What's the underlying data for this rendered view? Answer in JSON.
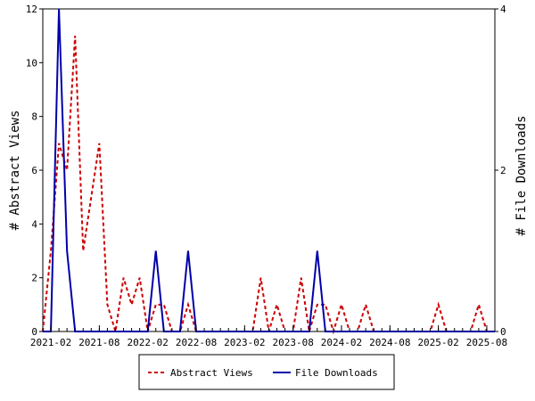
{
  "chart_data": {
    "type": "line",
    "ylabel_left": "# Abstract Views",
    "ylabel_right": "# File Downloads",
    "y_left_range": [
      0,
      12
    ],
    "y_left_ticks": [
      "0",
      "2",
      "4",
      "6",
      "8",
      "10",
      "12"
    ],
    "y_right_range": [
      0,
      4
    ],
    "y_right_ticks": [
      "0",
      "2",
      "4"
    ],
    "x_range": [
      "2021-01",
      "2025-09"
    ],
    "x_tick_labels": [
      {
        "month": "2021-02",
        "label": "2021-02"
      },
      {
        "month": "2021-08",
        "label": "2021-08"
      },
      {
        "month": "2022-02",
        "label": "2022-02"
      },
      {
        "month": "2022-08",
        "label": "2022-08"
      },
      {
        "month": "2023-02",
        "label": "2023-02"
      },
      {
        "month": "2023-08",
        "label": "2023-08"
      },
      {
        "month": "2024-02",
        "label": "2024-02"
      },
      {
        "month": "2024-08",
        "label": "2024-08"
      },
      {
        "month": "2025-02",
        "label": "2025-02"
      },
      {
        "month": "2025-08",
        "label": "2025-08"
      }
    ],
    "grid": false,
    "legend_position": "bottom-center",
    "series": [
      {
        "name": "Abstract Views",
        "axis": "left",
        "color": "#cc0000",
        "style": "dashed",
        "x": [
          "2021-01",
          "2021-02",
          "2021-03",
          "2021-04",
          "2021-05",
          "2021-06",
          "2021-07",
          "2021-08",
          "2021-09",
          "2021-10",
          "2021-11",
          "2021-12",
          "2022-01",
          "2022-02",
          "2022-03",
          "2022-04",
          "2022-05",
          "2022-06",
          "2022-07",
          "2022-08",
          "2022-09",
          "2022-10",
          "2022-11",
          "2022-12",
          "2023-01",
          "2023-02",
          "2023-03",
          "2023-04",
          "2023-05",
          "2023-06",
          "2023-07",
          "2023-08",
          "2023-09",
          "2023-10",
          "2023-11",
          "2023-12",
          "2024-01",
          "2024-02",
          "2024-03",
          "2024-04",
          "2024-05",
          "2024-06",
          "2024-07",
          "2024-08",
          "2024-09",
          "2024-10",
          "2024-11",
          "2024-12",
          "2025-01",
          "2025-02",
          "2025-03",
          "2025-04",
          "2025-05",
          "2025-06",
          "2025-07",
          "2025-08",
          "2025-09"
        ],
        "values": [
          0,
          3,
          7,
          6,
          11,
          3,
          5,
          7,
          1,
          0,
          2,
          1,
          2,
          0,
          1,
          1,
          0,
          0,
          1,
          0,
          0,
          0,
          0,
          0,
          0,
          0,
          0,
          2,
          0,
          1,
          0,
          0,
          2,
          0,
          1,
          1,
          0,
          1,
          0,
          0,
          1,
          0,
          0,
          0,
          0,
          0,
          0,
          0,
          0,
          1,
          0,
          0,
          0,
          0,
          1,
          0,
          0
        ]
      },
      {
        "name": "File Downloads",
        "axis": "right",
        "color": "#0000aa",
        "style": "solid",
        "x": [
          "2021-01",
          "2021-02",
          "2021-03",
          "2021-04",
          "2021-05",
          "2021-06",
          "2021-07",
          "2021-08",
          "2021-09",
          "2021-10",
          "2021-11",
          "2021-12",
          "2022-01",
          "2022-02",
          "2022-03",
          "2022-04",
          "2022-05",
          "2022-06",
          "2022-07",
          "2022-08",
          "2022-09",
          "2022-10",
          "2022-11",
          "2022-12",
          "2023-01",
          "2023-02",
          "2023-03",
          "2023-04",
          "2023-05",
          "2023-06",
          "2023-07",
          "2023-08",
          "2023-09",
          "2023-10",
          "2023-11",
          "2023-12",
          "2024-01",
          "2024-02",
          "2024-03",
          "2024-04",
          "2024-05",
          "2024-06",
          "2024-07",
          "2024-08",
          "2024-09",
          "2024-10",
          "2024-11",
          "2024-12",
          "2025-01",
          "2025-02",
          "2025-03",
          "2025-04",
          "2025-05",
          "2025-06",
          "2025-07",
          "2025-08",
          "2025-09"
        ],
        "values": [
          0,
          0,
          4,
          1,
          0,
          0,
          0,
          0,
          0,
          0,
          0,
          0,
          0,
          0,
          1,
          0,
          0,
          0,
          1,
          0,
          0,
          0,
          0,
          0,
          0,
          0,
          0,
          0,
          0,
          0,
          0,
          0,
          0,
          0,
          1,
          0,
          0,
          0,
          0,
          0,
          0,
          0,
          0,
          0,
          0,
          0,
          0,
          0,
          0,
          0,
          0,
          0,
          0,
          0,
          0,
          0,
          0
        ]
      }
    ]
  }
}
